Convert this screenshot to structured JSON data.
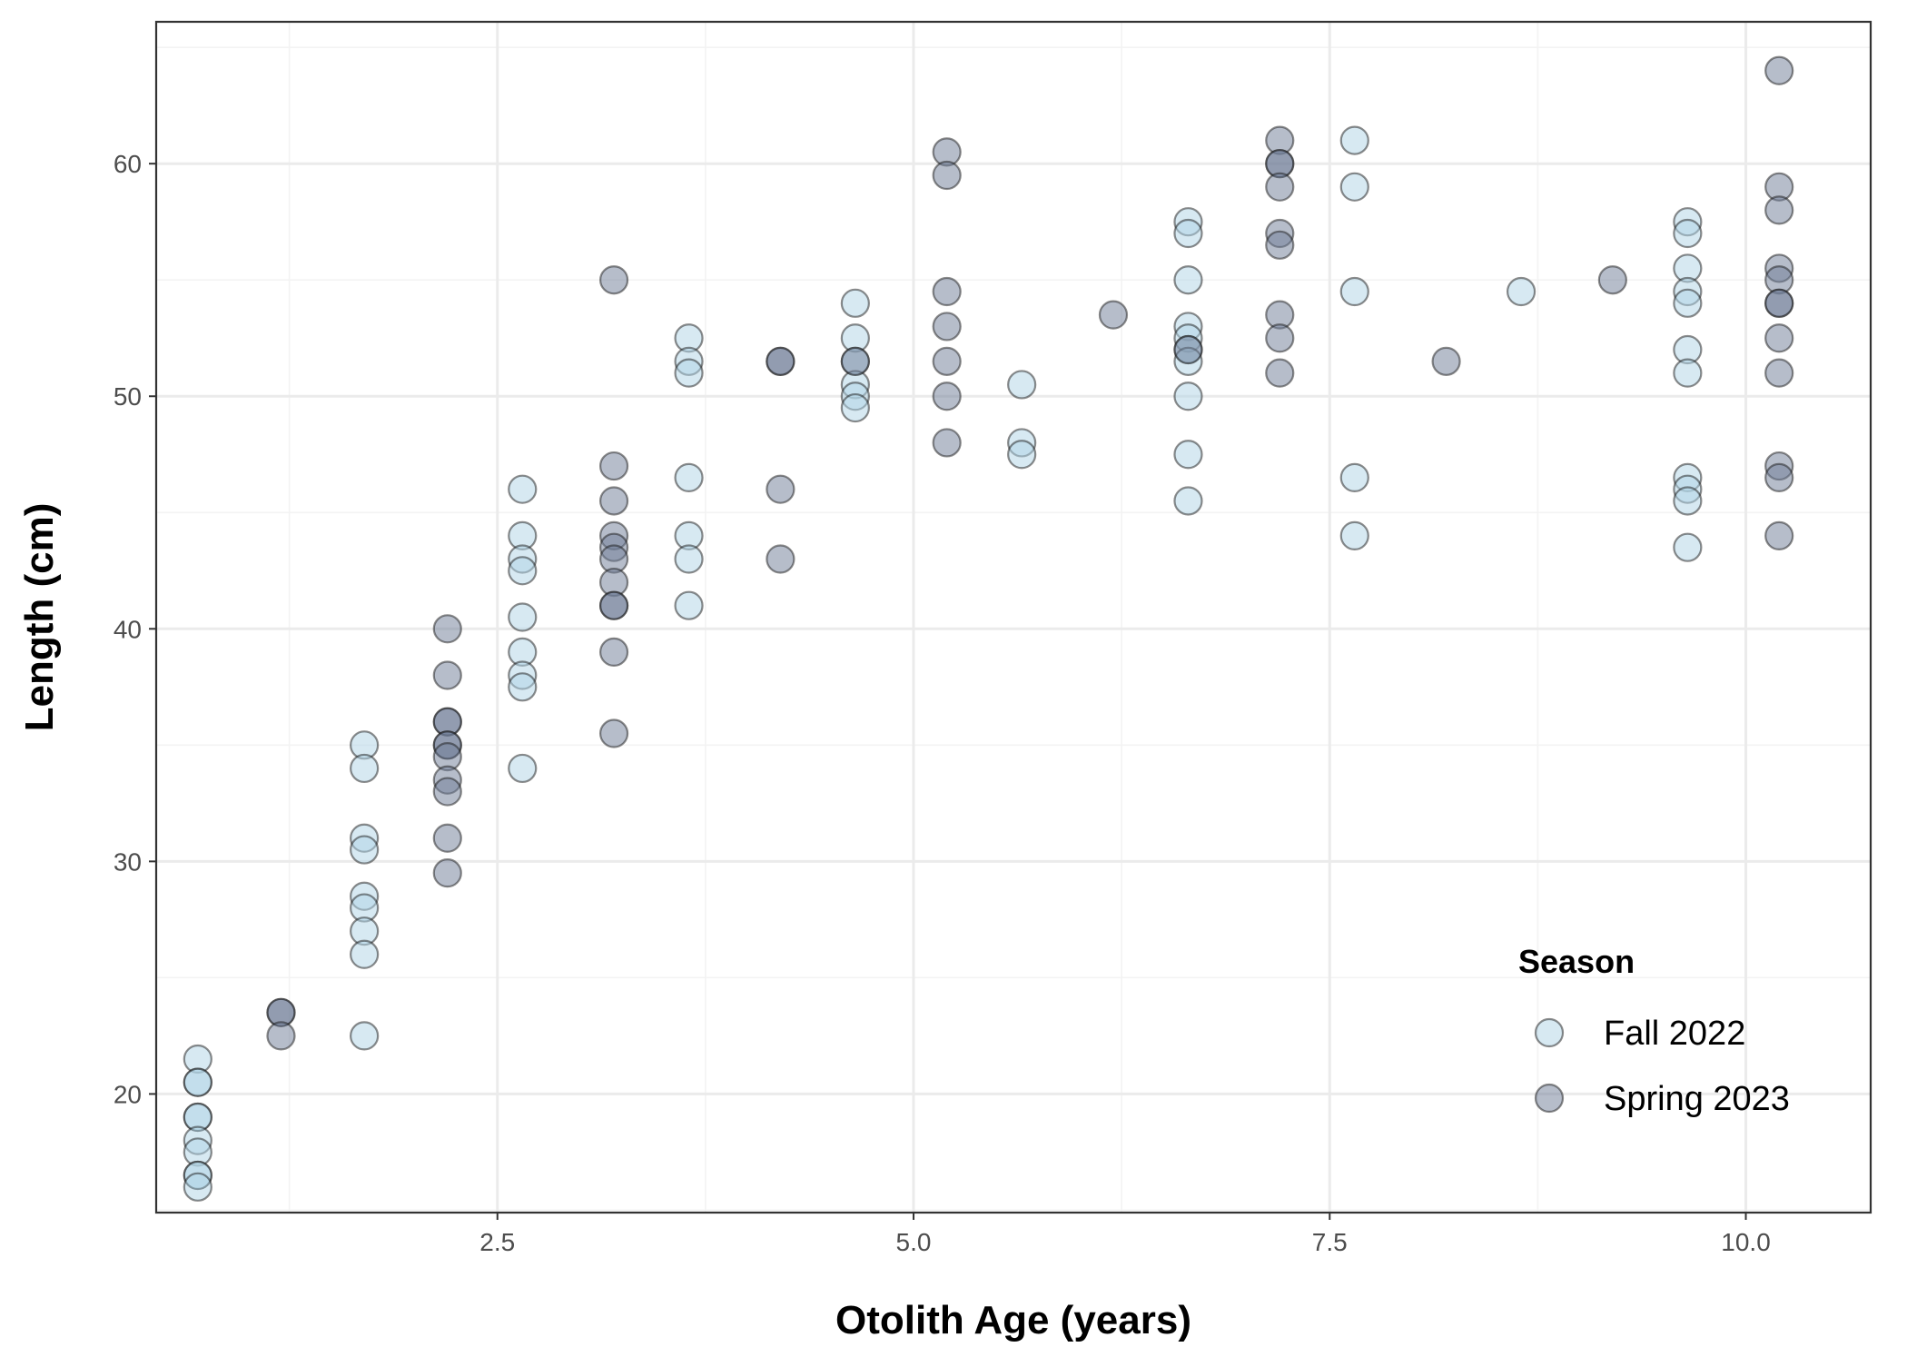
{
  "chart_data": {
    "type": "scatter",
    "title": "",
    "xlabel": "Otolith Age (years)",
    "ylabel": "Length (cm)",
    "xlim": [
      0.45,
      10.75
    ],
    "ylim": [
      14.9,
      66.1
    ],
    "x_ticks": [
      2.5,
      5.0,
      7.5,
      10.0
    ],
    "x_tick_labels": [
      "2.5",
      "5.0",
      "7.5",
      "10.0"
    ],
    "x_minor_ticks": [
      1.25,
      3.75,
      6.25,
      8.75
    ],
    "y_ticks": [
      20,
      30,
      40,
      50,
      60
    ],
    "y_tick_labels": [
      "20",
      "30",
      "40",
      "50",
      "60"
    ],
    "y_minor_ticks": [
      15,
      25,
      35,
      45,
      55,
      65
    ],
    "grid": true,
    "theme": "bw",
    "legend": {
      "title": "Season",
      "position": "bottom-right-inside",
      "entries": [
        "Fall 2022",
        "Spring 2023"
      ]
    },
    "colors": {
      "Fall 2022": "#b0d4e6",
      "Spring 2023": "#6e7b95",
      "point_stroke": "#1a1a1a",
      "grid_major": "#ebebeb",
      "grid_minor": "#f3f3f3",
      "panel_border": "#333333"
    },
    "point_alpha": 0.5,
    "series": [
      {
        "name": "Fall 2022",
        "points": [
          [
            0.7,
            21.5
          ],
          [
            0.7,
            20.5
          ],
          [
            0.7,
            20.5
          ],
          [
            0.7,
            19
          ],
          [
            0.7,
            19
          ],
          [
            0.7,
            18
          ],
          [
            0.7,
            17.5
          ],
          [
            0.7,
            16.5
          ],
          [
            0.7,
            16.5
          ],
          [
            0.7,
            16
          ],
          [
            1.7,
            35
          ],
          [
            1.7,
            34
          ],
          [
            1.7,
            31
          ],
          [
            1.7,
            30.5
          ],
          [
            1.7,
            28.5
          ],
          [
            1.7,
            28
          ],
          [
            1.7,
            27
          ],
          [
            1.7,
            26
          ],
          [
            1.7,
            22.5
          ],
          [
            2.65,
            46
          ],
          [
            2.65,
            44
          ],
          [
            2.65,
            43
          ],
          [
            2.65,
            42.5
          ],
          [
            2.65,
            40.5
          ],
          [
            2.65,
            39
          ],
          [
            2.65,
            38
          ],
          [
            2.65,
            37.5
          ],
          [
            2.65,
            34
          ],
          [
            3.65,
            52.5
          ],
          [
            3.65,
            51.5
          ],
          [
            3.65,
            51
          ],
          [
            3.65,
            46.5
          ],
          [
            3.65,
            44
          ],
          [
            3.65,
            43
          ],
          [
            3.65,
            41
          ],
          [
            4.65,
            54
          ],
          [
            4.65,
            52.5
          ],
          [
            4.65,
            51.5
          ],
          [
            4.65,
            50.5
          ],
          [
            4.65,
            50
          ],
          [
            4.65,
            49.5
          ],
          [
            5.65,
            50.5
          ],
          [
            5.65,
            48
          ],
          [
            5.65,
            47.5
          ],
          [
            6.65,
            57.5
          ],
          [
            6.65,
            57
          ],
          [
            6.65,
            55
          ],
          [
            6.65,
            53
          ],
          [
            6.65,
            52.5
          ],
          [
            6.65,
            52
          ],
          [
            6.65,
            51.5
          ],
          [
            6.65,
            50
          ],
          [
            6.65,
            47.5
          ],
          [
            6.65,
            45.5
          ],
          [
            7.65,
            61
          ],
          [
            7.65,
            59
          ],
          [
            7.65,
            54.5
          ],
          [
            7.65,
            46.5
          ],
          [
            7.65,
            44
          ],
          [
            8.65,
            54.5
          ],
          [
            9.65,
            57.5
          ],
          [
            9.65,
            57
          ],
          [
            9.65,
            55.5
          ],
          [
            9.65,
            54.5
          ],
          [
            9.65,
            54
          ],
          [
            9.65,
            52
          ],
          [
            9.65,
            51
          ],
          [
            9.65,
            46.5
          ],
          [
            9.65,
            46
          ],
          [
            9.65,
            45.5
          ],
          [
            9.65,
            43.5
          ]
        ]
      },
      {
        "name": "Spring 2023",
        "points": [
          [
            1.2,
            23.5
          ],
          [
            1.2,
            23.5
          ],
          [
            1.2,
            22.5
          ],
          [
            2.2,
            40
          ],
          [
            2.2,
            38
          ],
          [
            2.2,
            36
          ],
          [
            2.2,
            36
          ],
          [
            2.2,
            35
          ],
          [
            2.2,
            35
          ],
          [
            2.2,
            34.5
          ],
          [
            2.2,
            33.5
          ],
          [
            2.2,
            33
          ],
          [
            2.2,
            31
          ],
          [
            2.2,
            29.5
          ],
          [
            3.2,
            55
          ],
          [
            3.2,
            47
          ],
          [
            3.2,
            45.5
          ],
          [
            3.2,
            44
          ],
          [
            3.2,
            43.5
          ],
          [
            3.2,
            43
          ],
          [
            3.2,
            42
          ],
          [
            3.2,
            41
          ],
          [
            3.2,
            41
          ],
          [
            3.2,
            39
          ],
          [
            3.2,
            35.5
          ],
          [
            4.2,
            51.5
          ],
          [
            4.2,
            51.5
          ],
          [
            4.2,
            46
          ],
          [
            4.2,
            43
          ],
          [
            4.65,
            51.5
          ],
          [
            5.2,
            60.5
          ],
          [
            5.2,
            59.5
          ],
          [
            5.2,
            54.5
          ],
          [
            5.2,
            53
          ],
          [
            5.2,
            51.5
          ],
          [
            5.2,
            50
          ],
          [
            5.2,
            48
          ],
          [
            6.2,
            53.5
          ],
          [
            6.65,
            52
          ],
          [
            7.2,
            61
          ],
          [
            7.2,
            60
          ],
          [
            7.2,
            60
          ],
          [
            7.2,
            59
          ],
          [
            7.2,
            57
          ],
          [
            7.2,
            56.5
          ],
          [
            7.2,
            53.5
          ],
          [
            7.2,
            52.5
          ],
          [
            7.2,
            51
          ],
          [
            8.2,
            51.5
          ],
          [
            9.2,
            55
          ],
          [
            10.2,
            64
          ],
          [
            10.2,
            59
          ],
          [
            10.2,
            58
          ],
          [
            10.2,
            55.5
          ],
          [
            10.2,
            55
          ],
          [
            10.2,
            54
          ],
          [
            10.2,
            54
          ],
          [
            10.2,
            52.5
          ],
          [
            10.2,
            51
          ],
          [
            10.2,
            47
          ],
          [
            10.2,
            46.5
          ],
          [
            10.2,
            44
          ]
        ]
      }
    ]
  }
}
